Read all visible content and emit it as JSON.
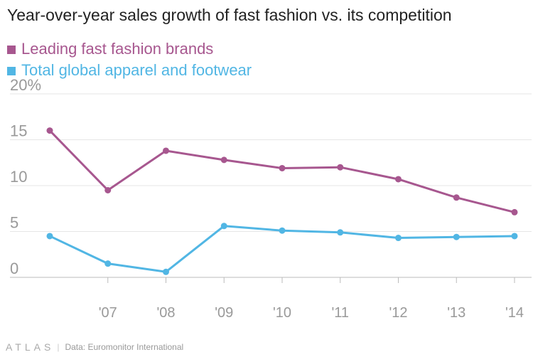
{
  "chart_data": {
    "type": "line",
    "title": "Year-over-year sales growth of fast fashion vs. its competition",
    "x": [
      "2006",
      "'07",
      "'08",
      "'09",
      "'10",
      "'11",
      "'12",
      "'13",
      "'14"
    ],
    "x_tick_labels": [
      "",
      "'07",
      "'08",
      "'09",
      "'10",
      "'11",
      "'12",
      "'13",
      "'14"
    ],
    "series": [
      {
        "name": "Leading fast fashion brands",
        "color": "#a7578f",
        "values": [
          16.0,
          9.5,
          13.8,
          12.8,
          11.9,
          12.0,
          10.7,
          8.7,
          7.1
        ]
      },
      {
        "name": "Total global apparel and footwear",
        "color": "#51b6e4",
        "values": [
          4.5,
          1.5,
          0.6,
          5.6,
          5.1,
          4.9,
          4.3,
          4.4,
          4.5
        ]
      }
    ],
    "y_ticks": [
      0,
      5,
      10,
      15,
      20
    ],
    "y_tick_labels": [
      "0",
      "5",
      "10",
      "15",
      "20%"
    ],
    "ylim": [
      0,
      20
    ],
    "xlabel": "",
    "ylabel": "",
    "legend_position": "top-left",
    "grid": true
  },
  "footer": {
    "logo": "ATLAS",
    "source": "Data:  Euromonitor International"
  }
}
